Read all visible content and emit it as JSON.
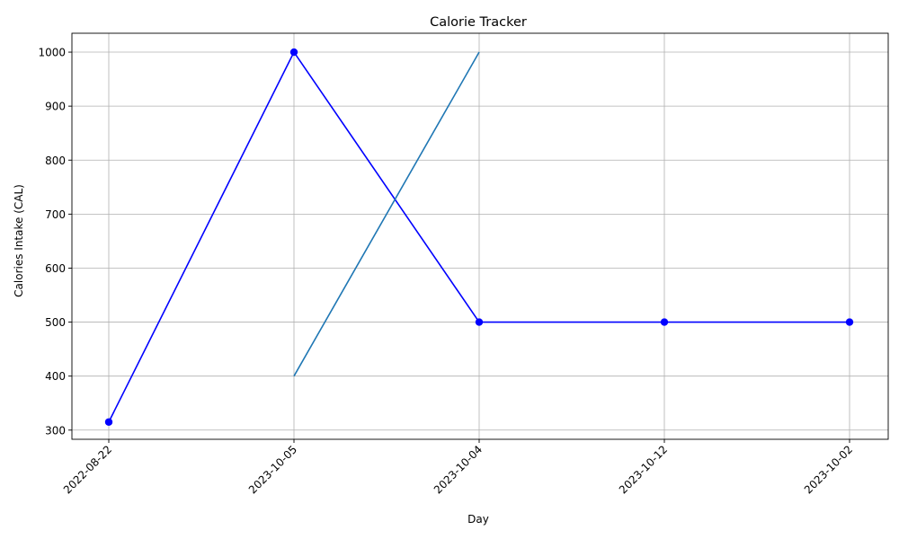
{
  "chart_data": {
    "type": "line",
    "title": "Calorie Tracker",
    "xlabel": "Day",
    "ylabel": "Calories Intake (CAL)",
    "categories": [
      "2022-08-22",
      "2023-10-05",
      "2023-10-04",
      "2023-10-12",
      "2023-10-02"
    ],
    "ylim": [
      283,
      1035
    ],
    "yticks": [
      300,
      400,
      500,
      600,
      700,
      800,
      900,
      1000
    ],
    "grid": true,
    "legend": "none",
    "series": [
      {
        "values": [
          315,
          1000,
          500,
          500,
          500
        ],
        "color": "#0000ff",
        "marker": "circle"
      },
      {
        "values": [
          null,
          400,
          1000,
          null,
          null
        ],
        "color": "#1f77b4",
        "marker": "none"
      }
    ]
  }
}
